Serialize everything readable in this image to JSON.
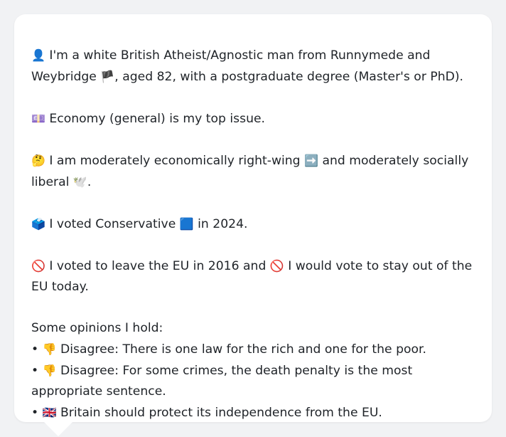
{
  "card": {
    "identity": {
      "icon": "👤",
      "text_a": "I'm a white British Atheist/Agnostic man from Runnymede and Weybridge",
      "flag": "🏴",
      "text_b": ", aged 82, with a postgraduate degree (Master's or PhD)."
    },
    "top_issue": {
      "icon": "💷",
      "text": "Economy (general) is my top issue."
    },
    "politics": {
      "icon": "🤔",
      "text_a": "I am moderately economically right-wing",
      "icon_right": "➡️",
      "text_b": "and moderately socially liberal",
      "icon_dove": "🕊️",
      "text_c": "."
    },
    "vote_2024": {
      "icon": "🗳️",
      "text_a": "I voted Conservative",
      "icon_party": "🟦",
      "text_b": "in 2024."
    },
    "brexit": {
      "icon_a": "🚫",
      "text_a": "I voted to leave the EU in 2016 and",
      "icon_b": "🚫",
      "text_b": "I would vote to stay out of the EU today."
    },
    "opinions": {
      "header": "Some opinions I hold:",
      "items": [
        {
          "bullet": "•",
          "icon": "👎",
          "text": "Disagree: There is one law for the rich and one for the poor."
        },
        {
          "bullet": "•",
          "icon": "👎",
          "text": "Disagree: For some crimes, the death penalty is the most appropriate sentence."
        },
        {
          "bullet": "•",
          "icon": "🇬🇧",
          "text": "Britain should protect its independence from the EU."
        }
      ]
    }
  }
}
